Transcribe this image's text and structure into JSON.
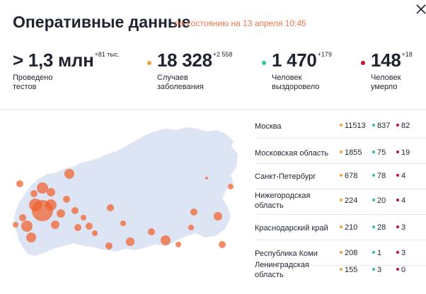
{
  "header": {
    "title": "Оперативные данные",
    "subtitle": "по состоянию на 13 апреля 10:45"
  },
  "colors": {
    "accent": "#f0764b",
    "cases": "#f5a143",
    "recovered": "#2ec4a0",
    "deaths": "#c8102e",
    "map_land": "#dde4f4",
    "map_bubble": "#f0602c"
  },
  "stats": [
    {
      "value": "> 1,3 млн",
      "delta": "+81 тыс.",
      "label_line1": "Проведено",
      "label_line2": "тестов",
      "dot": "none"
    },
    {
      "value": "18 328",
      "delta": "+2 558",
      "label_line1": "Случаев",
      "label_line2": "заболевания",
      "dot": "cases"
    },
    {
      "value": "1 470",
      "delta": "+179",
      "label_line1": "Человек",
      "label_line2": "выздоровело",
      "dot": "recovered"
    },
    {
      "value": "148",
      "delta": "+18",
      "label_line1": "Человек",
      "label_line2": "умерло",
      "dot": "deaths"
    }
  ],
  "regions": [
    {
      "name": "Москва",
      "cases": "11513",
      "recovered": "837",
      "deaths": "82"
    },
    {
      "name": "Московская область",
      "cases": "1855",
      "recovered": "75",
      "deaths": "19"
    },
    {
      "name": "Санкт-Петербург",
      "cases": "678",
      "recovered": "78",
      "deaths": "4"
    },
    {
      "name": "Нижегородская область",
      "cases": "224",
      "recovered": "20",
      "deaths": "4"
    },
    {
      "name": "Краснодарский край",
      "cases": "210",
      "recovered": "28",
      "deaths": "3"
    },
    {
      "name": "Республика Коми",
      "cases": "208",
      "recovered": "1",
      "deaths": "3"
    },
    {
      "name": "Ленинградская область",
      "cases": "155",
      "recovered": "3",
      "deaths": "0"
    }
  ],
  "icons": {
    "close": "close-icon"
  }
}
